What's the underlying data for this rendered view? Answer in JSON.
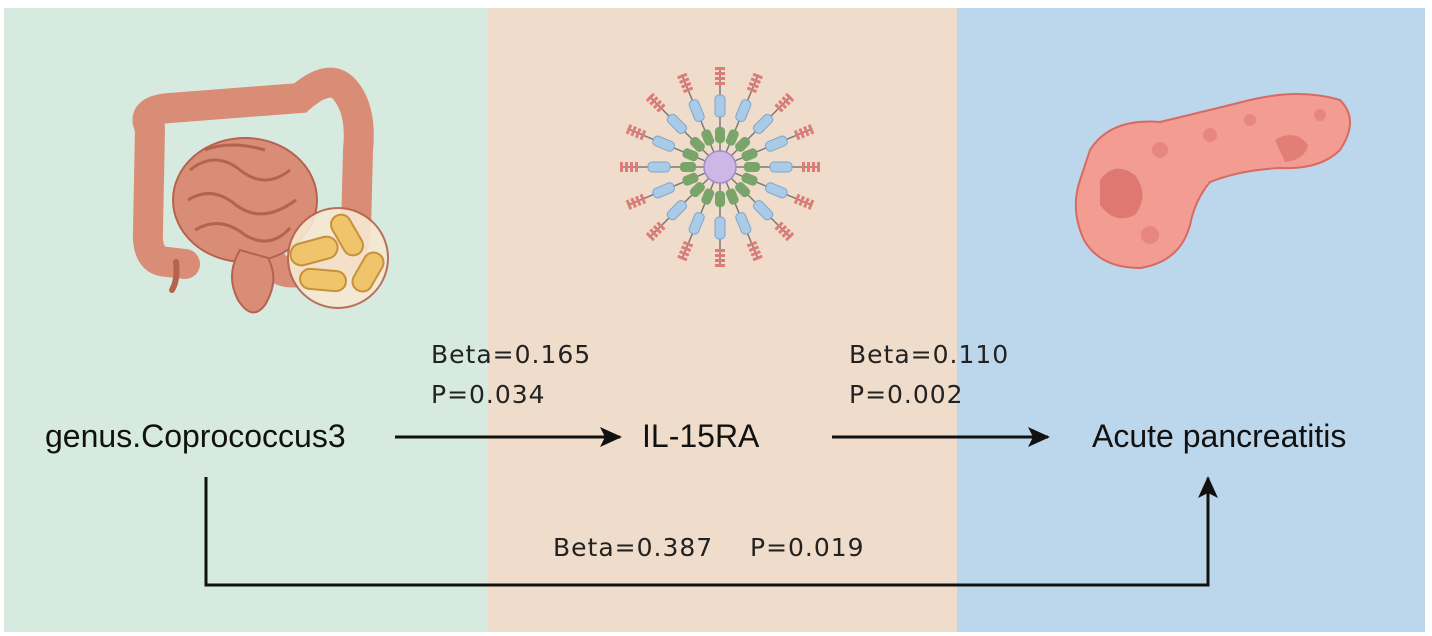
{
  "panels": [
    {
      "name": "gut-panel",
      "color": "#d7eadf"
    },
    {
      "name": "receptor-panel",
      "color": "#efdccb"
    },
    {
      "name": "pancreas-panel",
      "color": "#bcd7ec"
    }
  ],
  "nodes": {
    "exposure": "genus.Coprococcus3",
    "mediator": "IL-15RA",
    "outcome": "Acute pancreatitis"
  },
  "paths": {
    "exposure_to_mediator": {
      "beta": "Beta=0.165",
      "p": "P=0.034"
    },
    "mediator_to_outcome": {
      "beta": "Beta=0.110",
      "p": "P=0.002"
    },
    "direct": {
      "beta": "Beta=0.387",
      "p": "P=0.019"
    }
  },
  "illustrations": {
    "gut": "intestine-with-bacteria-icon",
    "receptor": "il15ra-receptor-icon",
    "pancreas": "pancreas-icon"
  },
  "colors": {
    "intestine": "#d98c76",
    "intestine_dark": "#b5634e",
    "bacteria": "#f0c46a",
    "receptor_center": "#cdb7e6",
    "receptor_green": "#79a46a",
    "receptor_blue": "#a9cbe8",
    "receptor_red": "#e07c78",
    "pancreas": "#f29c92",
    "pancreas_dark": "#d86a65"
  }
}
